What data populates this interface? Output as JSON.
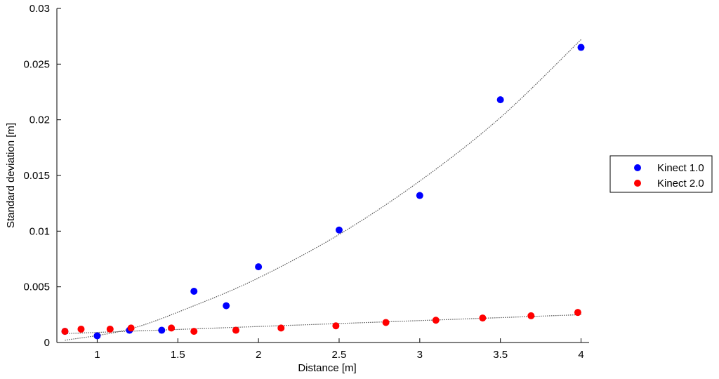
{
  "chart_data": {
    "type": "scatter",
    "xlabel": "Distance [m]",
    "ylabel": "Standard deviation [m]",
    "xlim": [
      0.75,
      4.05
    ],
    "ylim": [
      0,
      0.03
    ],
    "xticks": [
      {
        "value": 1,
        "label": "1"
      },
      {
        "value": 1.5,
        "label": "1.5"
      },
      {
        "value": 2,
        "label": "2"
      },
      {
        "value": 2.5,
        "label": "2.5"
      },
      {
        "value": 3,
        "label": "3"
      },
      {
        "value": 3.5,
        "label": "3.5"
      },
      {
        "value": 4,
        "label": "4"
      }
    ],
    "yticks": [
      {
        "value": 0,
        "label": "0"
      },
      {
        "value": 0.005,
        "label": "0.005"
      },
      {
        "value": 0.01,
        "label": "0.01"
      },
      {
        "value": 0.015,
        "label": "0.015"
      },
      {
        "value": 0.02,
        "label": "0.02"
      },
      {
        "value": 0.025,
        "label": "0.025"
      },
      {
        "value": 0.03,
        "label": "0.03"
      }
    ],
    "grid": false,
    "legend_position": "right",
    "series": [
      {
        "name": "Kinect 1.0",
        "color": "#0000ff",
        "x": [
          0.8,
          1.0,
          1.2,
          1.4,
          1.6,
          1.8,
          2.0,
          2.5,
          3.0,
          3.5,
          4.0
        ],
        "y": [
          0.001,
          0.0006,
          0.0011,
          0.0011,
          0.0046,
          0.0033,
          0.0068,
          0.0101,
          0.0132,
          0.0218,
          0.0265
        ],
        "trendline": {
          "x_range": [
            0.8,
            4.0
          ],
          "points": [
            [
              0.8,
              0.0002
            ],
            [
              1.2,
              0.0012
            ],
            [
              1.6,
              0.0033
            ],
            [
              2.0,
              0.0058
            ],
            [
              2.5,
              0.0097
            ],
            [
              3.0,
              0.0145
            ],
            [
              3.5,
              0.0202
            ],
            [
              4.0,
              0.0272
            ]
          ]
        }
      },
      {
        "name": "Kinect 2.0",
        "color": "#ff0000",
        "x": [
          0.8,
          0.9,
          1.08,
          1.21,
          1.46,
          1.6,
          1.86,
          2.14,
          2.48,
          2.79,
          3.1,
          3.39,
          3.69,
          3.98
        ],
        "y": [
          0.001,
          0.0012,
          0.0012,
          0.0013,
          0.0013,
          0.001,
          0.0011,
          0.0013,
          0.0015,
          0.0018,
          0.002,
          0.0022,
          0.0024,
          0.0027
        ],
        "trendline": {
          "x_range": [
            0.8,
            4.0
          ],
          "points": [
            [
              0.8,
              0.0008
            ],
            [
              4.0,
              0.0025
            ]
          ]
        }
      }
    ]
  }
}
